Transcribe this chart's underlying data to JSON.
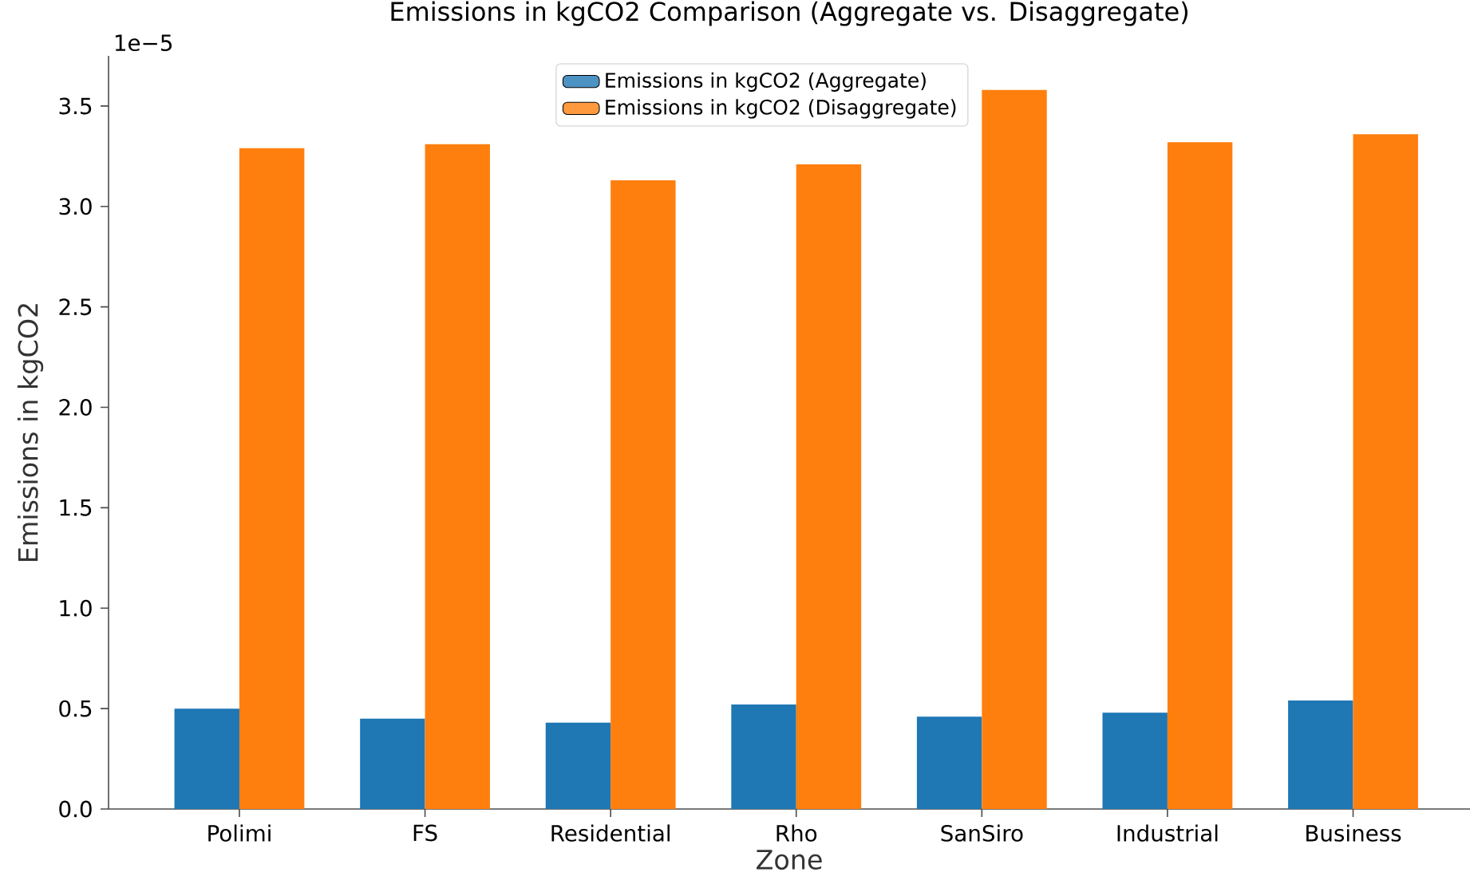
{
  "chart_data": {
    "type": "bar",
    "title": "Emissions in kgCO2 Comparison (Aggregate vs. Disaggregate)",
    "xlabel": "Zone",
    "ylabel": "Emissions in kgCO2",
    "annotations": [
      "1e−5"
    ],
    "categories": [
      "Polimi",
      "FS",
      "Residential",
      "Rho",
      "SanSiro",
      "Industrial",
      "Business"
    ],
    "series": [
      {
        "name": "Emissions in kgCO2 (Aggregate)",
        "color": "#1f77b4",
        "values": [
          0.5,
          0.45,
          0.43,
          0.52,
          0.46,
          0.48,
          0.54
        ]
      },
      {
        "name": "Emissions in kgCO2 (Disaggregate)",
        "color": "#ff7f0e",
        "values": [
          3.29,
          3.31,
          3.13,
          3.21,
          3.58,
          3.32,
          3.36
        ]
      }
    ],
    "ylim": [
      0,
      3.75
    ],
    "yticks": [
      {
        "value": 0,
        "label": "0.0"
      },
      0.5,
      {
        "value": 1,
        "label": "1.0"
      },
      1.5,
      {
        "value": 2,
        "label": "2.0"
      },
      2.5,
      {
        "value": 3,
        "label": "3.0"
      },
      3.5
    ],
    "grid": false,
    "legend": "top"
  }
}
